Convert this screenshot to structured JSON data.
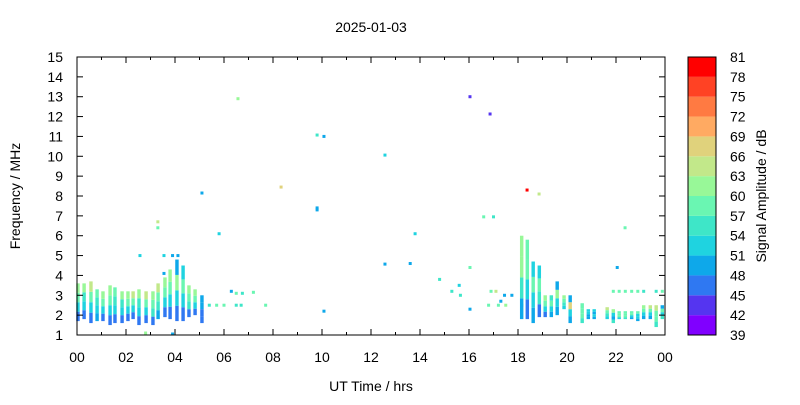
{
  "chart_data": {
    "type": "heatmap",
    "title": "2025-01-03",
    "xlabel": "UT Time / hrs",
    "ylabel": "Frequency / MHz",
    "xlim": [
      0,
      24
    ],
    "ylim": [
      1,
      15
    ],
    "x_ticks": [
      "00",
      "02",
      "04",
      "06",
      "08",
      "10",
      "12",
      "14",
      "16",
      "18",
      "20",
      "22",
      "00"
    ],
    "y_ticks": [
      "1",
      "2",
      "3",
      "4",
      "5",
      "6",
      "7",
      "8",
      "9",
      "10",
      "11",
      "12",
      "13",
      "14",
      "15"
    ],
    "colorbar": {
      "label": "Signal Amplitude / dB",
      "range": [
        39,
        81
      ],
      "step": 3,
      "tick_labels": [
        "81",
        "78",
        "75",
        "72",
        "69",
        "66",
        "63",
        "60",
        "57",
        "54",
        "51",
        "48",
        "45",
        "42",
        "39"
      ],
      "colors": [
        "#8000ff",
        "#5535f0",
        "#2f78f2",
        "#0ea8ea",
        "#1fd3e0",
        "#3ee6c8",
        "#6af6b2",
        "#98f898",
        "#c2e88a",
        "#e0d27c",
        "#ffaa62",
        "#ff7a42",
        "#ff4224",
        "#ff0000"
      ]
    },
    "columns_note": "each column: [hour, f_low MHz, f_high MHz, [dB of 4 equal bands bottom to top]]",
    "columns": [
      [
        0.04,
        1.7,
        3.6,
        [
          47,
          53,
          57,
          61
        ]
      ],
      [
        0.29,
        1.8,
        3.6,
        [
          46,
          52,
          56,
          60
        ]
      ],
      [
        0.57,
        1.6,
        3.7,
        [
          47,
          53,
          57,
          63
        ]
      ],
      [
        0.82,
        1.7,
        3.3,
        [
          48,
          52,
          56,
          59
        ]
      ],
      [
        1.06,
        1.7,
        3.2,
        [
          47,
          53,
          57,
          62
        ]
      ],
      [
        1.35,
        1.5,
        3.5,
        [
          45,
          52,
          57,
          61
        ]
      ],
      [
        1.55,
        1.6,
        3.4,
        [
          46,
          53,
          55,
          59
        ]
      ],
      [
        1.84,
        1.6,
        3.2,
        [
          45,
          52,
          56,
          60
        ]
      ],
      [
        2.08,
        1.7,
        3.2,
        [
          46,
          53,
          57,
          62
        ]
      ],
      [
        2.29,
        1.8,
        3.2,
        [
          47,
          52,
          57,
          63
        ]
      ],
      [
        2.53,
        1.5,
        3.3,
        [
          46,
          52,
          56,
          61
        ]
      ],
      [
        2.82,
        1.6,
        3.2,
        [
          46,
          53,
          57,
          65
        ]
      ],
      [
        3.1,
        1.5,
        3.2,
        [
          47,
          54,
          57,
          62
        ]
      ],
      [
        3.31,
        1.8,
        3.6,
        [
          48,
          55,
          58,
          63
        ]
      ],
      [
        3.59,
        1.9,
        3.9,
        [
          47,
          53,
          57,
          60
        ]
      ],
      [
        3.8,
        1.8,
        4.3,
        [
          46,
          53,
          57,
          61
        ]
      ],
      [
        4.08,
        1.7,
        4.8,
        [
          47,
          53,
          60,
          50
        ]
      ],
      [
        4.33,
        1.7,
        4.5,
        [
          46,
          52,
          57,
          52
        ]
      ],
      [
        4.57,
        1.9,
        3.5,
        [
          47,
          54,
          57,
          62
        ]
      ],
      [
        4.82,
        2.0,
        3.3,
        [
          47,
          53,
          57,
          60
        ]
      ],
      [
        5.1,
        1.6,
        3.0,
        [
          46,
          46,
          50,
          50
        ]
      ],
      [
        18.15,
        1.8,
        6.0,
        [
          48,
          55,
          60,
          62
        ]
      ],
      [
        18.38,
        1.8,
        5.8,
        [
          47,
          53,
          57,
          58
        ]
      ],
      [
        18.62,
        1.6,
        4.7,
        [
          48,
          53,
          57,
          52
        ]
      ],
      [
        18.87,
        1.9,
        4.5,
        [
          47,
          54,
          58,
          51
        ]
      ],
      [
        19.11,
        1.9,
        3.0,
        [
          47,
          53,
          58,
          61
        ]
      ],
      [
        19.36,
        1.9,
        3.0,
        [
          48,
          52,
          57,
          55
        ]
      ],
      [
        19.6,
        2.0,
        3.7,
        [
          48,
          52,
          60,
          50
        ]
      ],
      [
        19.88,
        2.3,
        3.0,
        [
          52,
          56,
          59,
          61
        ]
      ],
      [
        20.13,
        1.6,
        3.0,
        [
          49,
          52,
          66,
          50
        ]
      ],
      [
        20.62,
        1.6,
        2.6,
        [
          54,
          57,
          58,
          58
        ]
      ],
      [
        20.87,
        1.8,
        2.3,
        [
          49,
          50,
          52,
          51
        ]
      ],
      [
        21.11,
        1.8,
        2.3,
        [
          49,
          51,
          50,
          52
        ]
      ],
      [
        21.64,
        1.8,
        2.4,
        [
          52,
          54,
          57,
          63
        ]
      ],
      [
        21.89,
        1.6,
        2.3,
        [
          54,
          50,
          52,
          61
        ]
      ],
      [
        22.13,
        1.8,
        2.2,
        [
          51,
          57,
          59,
          58
        ]
      ],
      [
        22.38,
        1.8,
        2.2,
        [
          54,
          57,
          58,
          57
        ]
      ],
      [
        22.64,
        1.8,
        2.2,
        [
          50,
          52,
          57,
          59
        ]
      ],
      [
        22.89,
        1.7,
        2.2,
        [
          49,
          51,
          53,
          57
        ]
      ],
      [
        23.13,
        1.8,
        2.5,
        [
          50,
          52,
          57,
          62
        ]
      ],
      [
        23.4,
        1.8,
        2.5,
        [
          49,
          53,
          57,
          63
        ]
      ],
      [
        23.64,
        1.4,
        2.5,
        [
          55,
          57,
          58,
          63
        ]
      ],
      [
        23.89,
        1.8,
        2.5,
        [
          54,
          51,
          57,
          50
        ]
      ]
    ],
    "points_note": "isolated detections: [hour, MHz, dB]",
    "points": [
      [
        6.57,
        12.9,
        60
      ],
      [
        5.1,
        8.15,
        50
      ],
      [
        5.8,
        6.1,
        52
      ],
      [
        8.33,
        8.45,
        67
      ],
      [
        9.8,
        11.07,
        54
      ],
      [
        10.08,
        11.0,
        48
      ],
      [
        9.8,
        7.4,
        48
      ],
      [
        9.8,
        7.3,
        48
      ],
      [
        10.08,
        2.2,
        49
      ],
      [
        12.57,
        10.06,
        52
      ],
      [
        12.57,
        4.57,
        48
      ],
      [
        13.6,
        4.6,
        48
      ],
      [
        13.8,
        6.1,
        52
      ],
      [
        16.04,
        13.0,
        42
      ],
      [
        16.86,
        12.13,
        44
      ],
      [
        16.04,
        4.4,
        57
      ],
      [
        14.8,
        3.8,
        54
      ],
      [
        15.3,
        3.2,
        54
      ],
      [
        15.6,
        3.5,
        52
      ],
      [
        15.65,
        3.0,
        54
      ],
      [
        16.6,
        6.95,
        57
      ],
      [
        17.0,
        6.95,
        54
      ],
      [
        18.37,
        8.3,
        79
      ],
      [
        18.86,
        8.1,
        63
      ],
      [
        22.37,
        6.4,
        57
      ],
      [
        22.05,
        4.4,
        48
      ],
      [
        3.3,
        6.7,
        64
      ],
      [
        3.3,
        6.4,
        57
      ],
      [
        2.57,
        5.0,
        52
      ],
      [
        3.55,
        5.0,
        52
      ],
      [
        3.9,
        5.0,
        50
      ],
      [
        4.12,
        5.0,
        50
      ],
      [
        3.55,
        4.1,
        48
      ],
      [
        16.04,
        2.3,
        48
      ],
      [
        2.8,
        1.1,
        60
      ],
      [
        3.9,
        1.05,
        48
      ],
      [
        5.4,
        2.5,
        54
      ],
      [
        5.7,
        2.5,
        57
      ],
      [
        6.0,
        2.5,
        59
      ],
      [
        6.5,
        2.5,
        54
      ],
      [
        6.7,
        2.5,
        54
      ],
      [
        6.3,
        3.2,
        48
      ],
      [
        6.5,
        3.1,
        57
      ],
      [
        6.75,
        3.1,
        56
      ],
      [
        7.2,
        3.15,
        59
      ],
      [
        7.7,
        2.5,
        59
      ],
      [
        16.9,
        3.2,
        57
      ],
      [
        17.1,
        3.2,
        63
      ],
      [
        16.8,
        2.5,
        57
      ],
      [
        17.2,
        2.5,
        59
      ],
      [
        17.5,
        2.5,
        60
      ],
      [
        17.3,
        2.7,
        49
      ],
      [
        17.45,
        3.0,
        48
      ],
      [
        17.75,
        3.0,
        49
      ],
      [
        18.15,
        2.5,
        50
      ],
      [
        21.89,
        3.2,
        57
      ],
      [
        22.13,
        3.2,
        57
      ],
      [
        22.38,
        3.2,
        57
      ],
      [
        22.64,
        3.2,
        57
      ],
      [
        22.89,
        3.2,
        57
      ],
      [
        23.13,
        3.2,
        54
      ],
      [
        23.64,
        3.2,
        54
      ],
      [
        23.89,
        3.2,
        57
      ]
    ]
  }
}
